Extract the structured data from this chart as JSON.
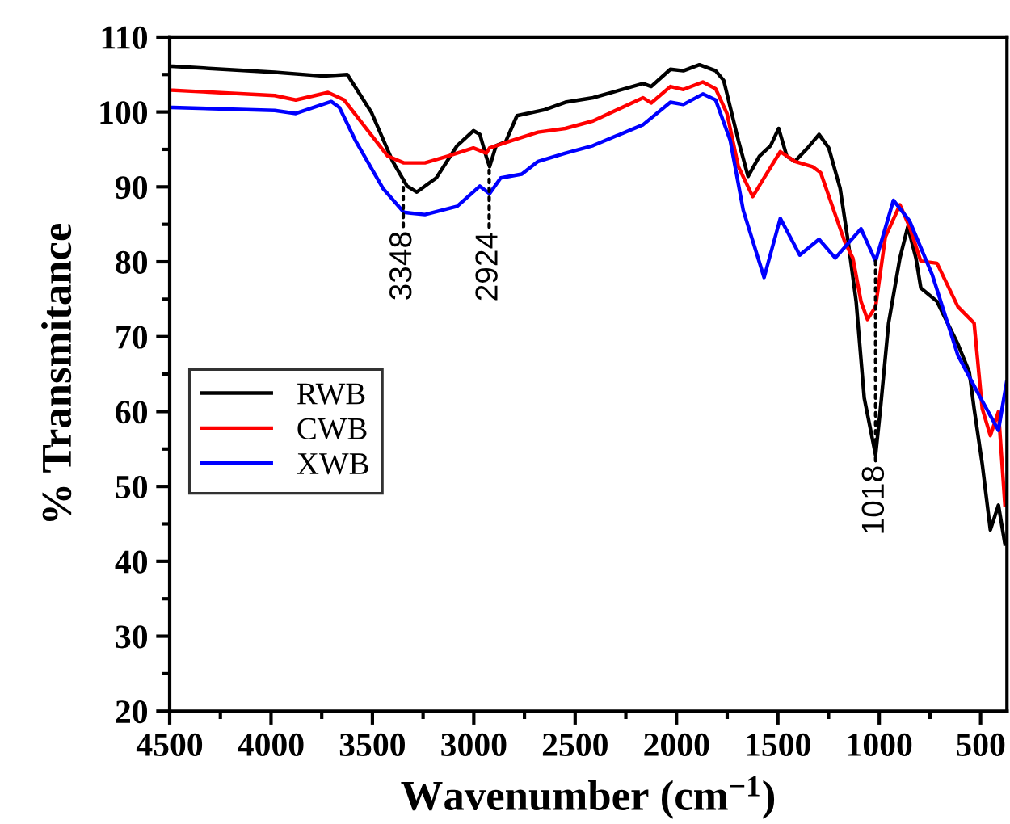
{
  "chart_data": {
    "type": "line",
    "xlabel": "Wavenumber (cm$^{−1}$)",
    "ylabel": "% Transmitance",
    "xlim": [
      4500,
      370
    ],
    "ylim": [
      20,
      110
    ],
    "xticks": [
      4500,
      {
        "value": 4250,
        "label": null
      },
      4000,
      {
        "value": 3750,
        "label": null
      },
      3500,
      {
        "value": 3250,
        "label": null
      },
      3000,
      {
        "value": 2750,
        "label": null
      },
      2500,
      {
        "value": 2250,
        "label": null
      },
      2000,
      {
        "value": 1750,
        "label": null
      },
      1500,
      {
        "value": 1250,
        "label": null
      },
      1000,
      {
        "value": 750,
        "label": null
      },
      500
    ],
    "yticks": [
      20,
      {
        "value": 25,
        "label": null
      },
      30,
      {
        "value": 35,
        "label": null
      },
      40,
      {
        "value": 45,
        "label": null
      },
      50,
      {
        "value": 55,
        "label": null
      },
      60,
      {
        "value": 65,
        "label": null
      },
      70,
      {
        "value": 75,
        "label": null
      },
      80,
      {
        "value": 85,
        "label": null
      },
      90,
      {
        "value": 95,
        "label": null
      },
      100,
      {
        "value": 105,
        "label": null
      },
      110
    ],
    "grid": false,
    "legend": "left",
    "line_style": "solid",
    "marker": "none",
    "annotations": [
      {
        "text": "3348",
        "x": 3348,
        "y": 91.0
      },
      {
        "text": "2924",
        "x": 2924,
        "y": 92.7
      },
      {
        "text": "1018",
        "x": 1018,
        "y": 80.1
      }
    ],
    "series": [
      {
        "name": "RWB",
        "color": "#000000",
        "x": [
          4484,
          3982,
          3743,
          3624,
          3504,
          3400,
          3329,
          3281,
          3185,
          3082,
          3002,
          2970,
          2938,
          2922,
          2890,
          2843,
          2787,
          2651,
          2548,
          2412,
          2165,
          2125,
          2030,
          1966,
          1887,
          1807,
          1767,
          1695,
          1647,
          1591,
          1536,
          1496,
          1456,
          1416,
          1353,
          1297,
          1249,
          1193,
          1153,
          1114,
          1074,
          1018,
          994,
          954,
          898,
          859,
          819,
          795,
          715,
          612,
          556,
          532,
          492,
          452,
          412,
          380
        ],
        "values": [
          106.1,
          105.3,
          104.8,
          105.0,
          99.9,
          93.4,
          90.1,
          89.3,
          91.2,
          95.5,
          97.5,
          97.0,
          94.0,
          92.7,
          95.5,
          96.0,
          99.5,
          100.3,
          101.3,
          101.9,
          103.8,
          103.4,
          105.7,
          105.5,
          106.3,
          105.5,
          104.2,
          96.2,
          91.4,
          94.1,
          95.5,
          97.8,
          94.1,
          93.4,
          95.2,
          97.0,
          95.2,
          89.8,
          82.6,
          74.7,
          61.8,
          54.2,
          60.4,
          71.8,
          80.5,
          84.7,
          80.5,
          76.5,
          74.7,
          69.0,
          65.3,
          60.4,
          53.0,
          44.2,
          47.5,
          42.3
        ]
      },
      {
        "name": "CWB",
        "color": "#ff0000",
        "x": [
          4484,
          3982,
          3878,
          3719,
          3639,
          3528,
          3424,
          3345,
          3241,
          3129,
          3002,
          2938,
          2922,
          2811,
          2683,
          2548,
          2412,
          2165,
          2125,
          2030,
          1966,
          1870,
          1807,
          1751,
          1695,
          1624,
          1568,
          1488,
          1416,
          1329,
          1289,
          1217,
          1169,
          1130,
          1090,
          1058,
          1018,
          970,
          898,
          851,
          795,
          715,
          612,
          532,
          492,
          452,
          412,
          380
        ],
        "values": [
          102.9,
          102.2,
          101.6,
          102.6,
          101.6,
          97.7,
          94.1,
          93.2,
          93.2,
          94.1,
          95.2,
          94.5,
          95.2,
          96.2,
          97.3,
          97.8,
          98.8,
          101.9,
          101.2,
          103.4,
          103.0,
          104.0,
          103.1,
          99.8,
          92.7,
          88.7,
          91.2,
          94.7,
          93.4,
          92.7,
          91.9,
          86.3,
          82.6,
          80.5,
          74.7,
          72.3,
          74.0,
          83.3,
          87.6,
          84.7,
          80.1,
          79.8,
          74.0,
          71.8,
          60.4,
          56.8,
          60.0,
          47.5
        ]
      },
      {
        "name": "XWB",
        "color": "#0000ff",
        "x": [
          4484,
          3982,
          3878,
          3703,
          3663,
          3584,
          3448,
          3345,
          3241,
          3082,
          2970,
          2922,
          2867,
          2763,
          2683,
          2548,
          2412,
          2165,
          2030,
          1966,
          1870,
          1807,
          1735,
          1671,
          1568,
          1488,
          1392,
          1297,
          1217,
          1090,
          1018,
          930,
          851,
          739,
          612,
          500,
          412,
          372
        ],
        "values": [
          100.6,
          100.2,
          99.8,
          101.4,
          100.6,
          96.2,
          89.8,
          86.6,
          86.3,
          87.4,
          90.1,
          89.1,
          91.2,
          91.7,
          93.4,
          94.5,
          95.5,
          98.3,
          101.3,
          101.0,
          102.4,
          101.6,
          96.2,
          86.9,
          77.9,
          85.8,
          80.9,
          83.0,
          80.5,
          84.4,
          80.1,
          88.2,
          85.5,
          78.3,
          67.5,
          61.8,
          57.5,
          63.9
        ]
      }
    ]
  }
}
